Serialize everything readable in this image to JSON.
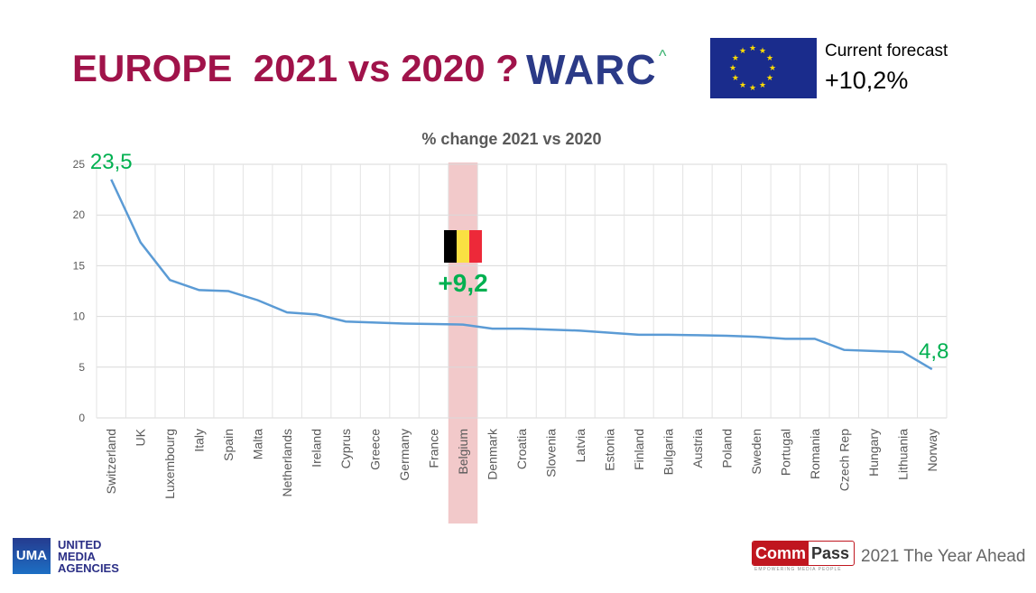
{
  "header": {
    "title": "EUROPE  2021 vs 2020 ?",
    "logo": "WARC",
    "logo_mark": "^",
    "forecast_label": "Current forecast",
    "forecast_value": "+10,2%"
  },
  "footer": {
    "uma": "UMA",
    "uma_text": [
      "UNITED",
      "MEDIA",
      "AGENCIES"
    ],
    "commpass_1": "Comm",
    "commpass_2": "Pass",
    "commpass_tag": "EMPOWERING MEDIA PEOPLE",
    "tagline": "2021 The Year Ahead"
  },
  "colors": {
    "line": "#5b9bd5",
    "highlight": "#f2c9ca",
    "annotation": "#00b050",
    "title": "#a0134a"
  },
  "chart_data": {
    "type": "line",
    "title": "% change 2021 vs 2020",
    "xlabel": "",
    "ylabel": "",
    "ylim": [
      0,
      25
    ],
    "yticks": [
      0,
      5,
      10,
      15,
      20,
      25
    ],
    "grid": true,
    "categories": [
      "Switzerland",
      "UK",
      "Luxembourg",
      "Italy",
      "Spain",
      "Malta",
      "Netherlands",
      "Ireland",
      "Cyprus",
      "Greece",
      "Germany",
      "France",
      "Belgium",
      "Denmark",
      "Croatia",
      "Slovenia",
      "Latvia",
      "Estonia",
      "Finland",
      "Bulgaria",
      "Austria",
      "Poland",
      "Sweden",
      "Portugal",
      "Romania",
      "Czech Rep",
      "Hungary",
      "Lithuania",
      "Norway"
    ],
    "values": [
      23.5,
      17.3,
      13.6,
      12.6,
      12.5,
      11.6,
      10.4,
      10.2,
      9.5,
      9.4,
      9.3,
      9.25,
      9.2,
      8.8,
      8.8,
      8.7,
      8.6,
      8.4,
      8.2,
      8.2,
      8.15,
      8.1,
      8.0,
      7.8,
      7.8,
      6.7,
      6.6,
      6.5,
      4.8
    ],
    "highlight": "Belgium",
    "annotations": [
      {
        "category": "Switzerland",
        "text": "23,5"
      },
      {
        "category": "Belgium",
        "text": "+9,2"
      },
      {
        "category": "Norway",
        "text": "4,8"
      }
    ]
  }
}
